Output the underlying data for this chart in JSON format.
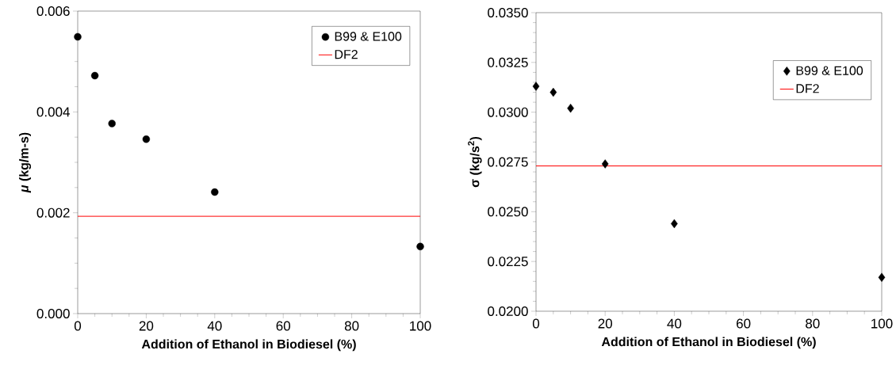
{
  "chart_data": [
    {
      "type": "scatter",
      "xlabel": "Addition of Ethanol in Biodiesel (%)",
      "ylabel": "*μ*   (kg/m-s)",
      "x": [
        0,
        5,
        10,
        20,
        40,
        100
      ],
      "series": [
        {
          "name": "B99 & E100",
          "color": "#000000",
          "values": [
            0.00549,
            0.00472,
            0.00377,
            0.00346,
            0.00241,
            0.00133
          ],
          "marker": "circle"
        }
      ],
      "ref_lines": [
        {
          "axis": "y",
          "value": 0.00193,
          "label": "DF2",
          "color": "#ff0000"
        }
      ],
      "xlim": [
        0,
        100
      ],
      "xticks": [
        0,
        20,
        40,
        60,
        80,
        100
      ],
      "ylim": [
        0,
        0.006
      ],
      "yticks": [
        {
          "value": 0,
          "label": "0.000"
        },
        {
          "value": 0.002,
          "label": "0.002"
        },
        {
          "value": 0.004,
          "label": "0.004"
        },
        {
          "value": 0.006,
          "label": "0.006"
        }
      ],
      "legend": "top right",
      "grid": false
    },
    {
      "type": "scatter",
      "xlabel": "Addition of Ethanol in Biodiesel (%)",
      "ylabel": "σ   (kg/s$^{2}$)",
      "x": [
        0,
        5,
        10,
        20,
        40,
        100
      ],
      "series": [
        {
          "name": "B99 & E100",
          "color": "#000000",
          "values": [
            0.0313,
            0.031,
            0.0302,
            0.0274,
            0.0244,
            0.0217
          ],
          "marker": "diamond"
        }
      ],
      "ref_lines": [
        {
          "axis": "y",
          "value": 0.0273,
          "label": "DF2",
          "color": "#ff0000"
        }
      ],
      "xlim": [
        0,
        100
      ],
      "xticks": [
        0,
        20,
        40,
        60,
        80,
        100
      ],
      "ylim": [
        0.02,
        0.035
      ],
      "yticks": [
        {
          "value": 0.02,
          "label": "0.0200"
        },
        {
          "value": 0.0225,
          "label": "0.0225"
        },
        {
          "value": 0.025,
          "label": "0.0250"
        },
        {
          "value": 0.0275,
          "label": "0.0275"
        },
        {
          "value": 0.03,
          "label": "0.0300"
        },
        {
          "value": 0.0325,
          "label": "0.0325"
        },
        {
          "value": 0.035,
          "label": "0.0350"
        }
      ],
      "legend": "top right",
      "grid": false
    }
  ]
}
